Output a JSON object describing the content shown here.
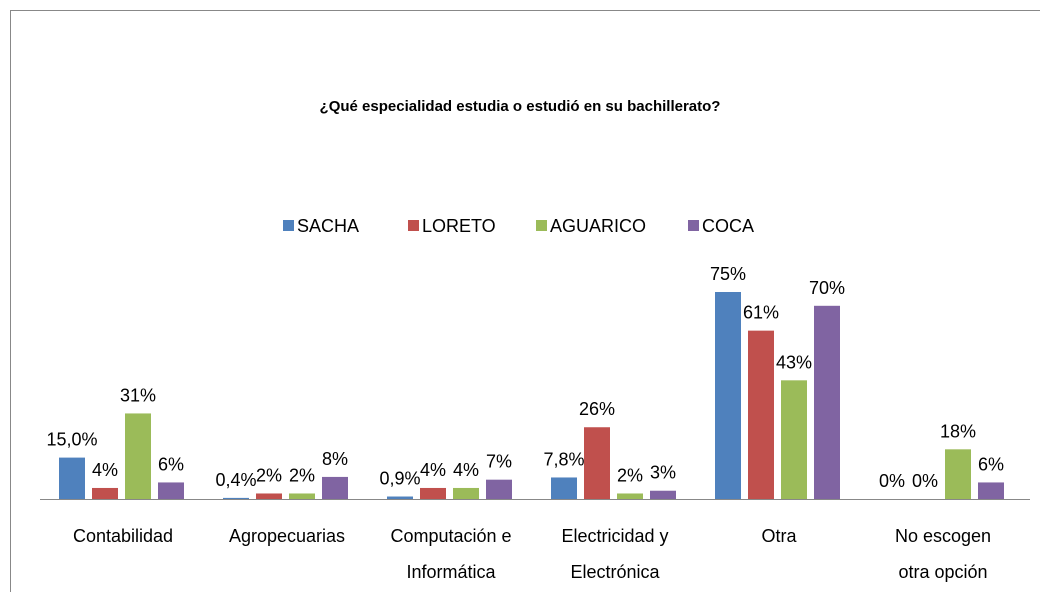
{
  "chart_data": {
    "type": "bar",
    "title": "¿Qué especialidad estudia o estudió en su bachillerato?",
    "categories": [
      "Contabilidad",
      "Agropecuarias",
      "Computación e\nInformática",
      "Electricidad y\nElectrónica",
      "Otra",
      "No escogen\notra opción"
    ],
    "series": [
      {
        "name": "SACHA",
        "color": "#4f81bd",
        "values": [
          15.0,
          0.4,
          0.9,
          7.8,
          75,
          0
        ],
        "value_labels": [
          "15,0%",
          "0,4%",
          "0,9%",
          "7,8%",
          "75%",
          "0%"
        ]
      },
      {
        "name": "LORETO",
        "color": "#c0504d",
        "values": [
          4,
          2,
          4,
          26,
          61,
          0
        ],
        "value_labels": [
          "4%",
          "2%",
          "4%",
          "26%",
          "61%",
          "0%"
        ]
      },
      {
        "name": "AGUARICO",
        "color": "#9bbb59",
        "values": [
          31,
          2,
          4,
          2,
          43,
          18
        ],
        "value_labels": [
          "31%",
          "2%",
          "4%",
          "2%",
          "43%",
          "18%"
        ]
      },
      {
        "name": "COCA",
        "color": "#8064a2",
        "values": [
          6,
          8,
          7,
          3,
          70,
          6
        ],
        "value_labels": [
          "6%",
          "8%",
          "7%",
          "3%",
          "70%",
          "6%"
        ]
      }
    ],
    "legend": "top"
  }
}
